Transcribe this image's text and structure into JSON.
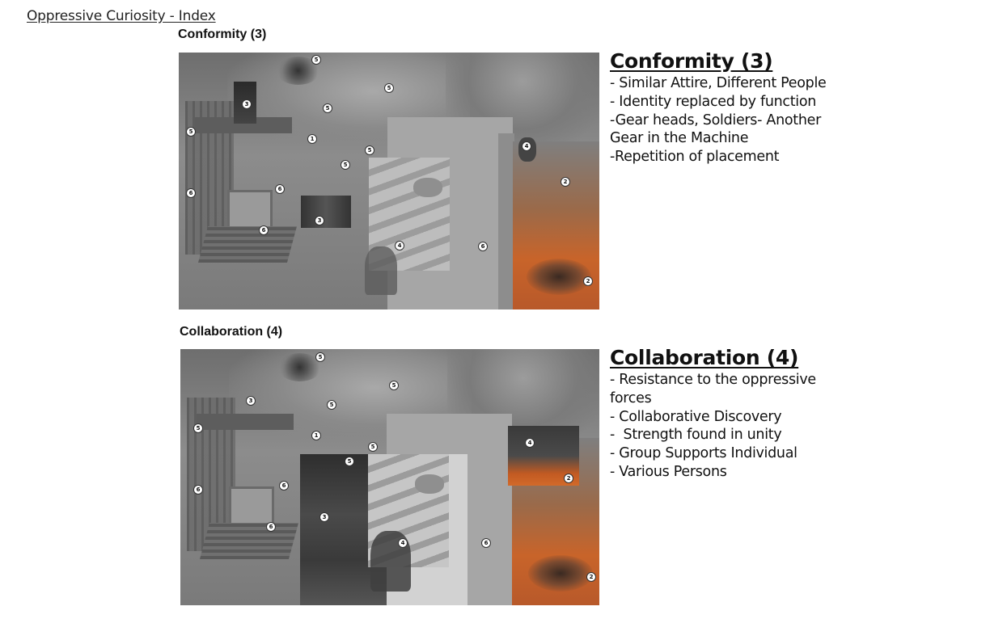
{
  "document_title": "Oppressive Curiosity - Index",
  "sections": [
    {
      "label": "Conformity (3)",
      "heading": "Conformity (3)",
      "bullets": [
        "- Similar Attire, Different People",
        "- Identity replaced by function",
        "-Gear heads, Soldiers- Another Gear in the Machine",
        "-Repetition of placement"
      ],
      "markers": [
        "5",
        "5",
        "3",
        "5",
        "5",
        "1",
        "5",
        "5",
        "4",
        "6",
        "6",
        "2",
        "3",
        "6",
        "4",
        "6",
        "2"
      ]
    },
    {
      "label": "Collaboration (4)",
      "heading": "Collaboration (4)",
      "bullets": [
        "- Resistance to the oppressive forces",
        "- Collaborative Discovery",
        "-  Strength found in unity",
        "- Group Supports Individual",
        "- Various Persons"
      ],
      "markers": [
        "5",
        "5",
        "3",
        "5",
        "5",
        "1",
        "5",
        "5",
        "4",
        "6",
        "6",
        "2",
        "3",
        "6",
        "4",
        "6",
        "2"
      ]
    }
  ],
  "colors": {
    "collage_gray": "#7a7a7a",
    "fire_orange": "#c8642a",
    "marker_fill": "#ffffff"
  }
}
